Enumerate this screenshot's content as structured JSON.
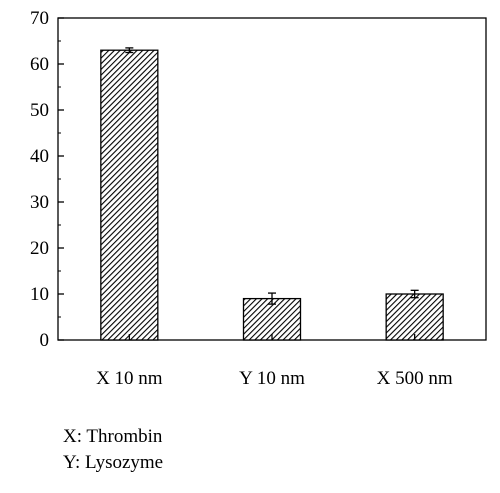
{
  "chart_data": {
    "type": "bar",
    "title": "",
    "xlabel": "",
    "ylabel": "",
    "categories": [
      "X 10 nm",
      "Y 10 nm",
      "X 500 nm"
    ],
    "values": [
      63,
      9,
      10
    ],
    "errors": [
      0.5,
      1.2,
      0.8
    ],
    "ylim": [
      0,
      70
    ],
    "yticks": [
      "0",
      "10",
      "20",
      "30",
      "40",
      "50",
      "60",
      "70"
    ],
    "bar_fill": "hatched",
    "grid": false
  },
  "legend": {
    "line1": "X: Thrombin",
    "line2": "Y: Lysozyme"
  }
}
